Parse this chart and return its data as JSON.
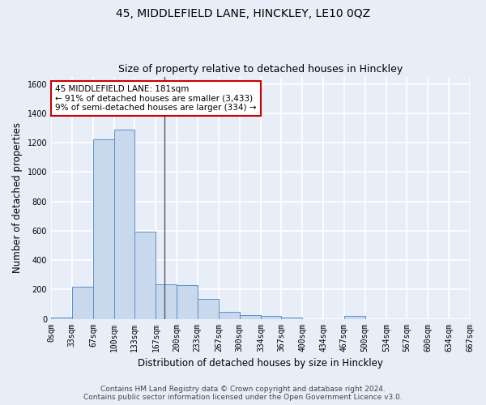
{
  "title": "45, MIDDLEFIELD LANE, HINCKLEY, LE10 0QZ",
  "subtitle": "Size of property relative to detached houses in Hinckley",
  "xlabel": "Distribution of detached houses by size in Hinckley",
  "ylabel": "Number of detached properties",
  "bar_edges": [
    0,
    33,
    67,
    100,
    133,
    167,
    200,
    233,
    267,
    300,
    334,
    367,
    400,
    434,
    467,
    500,
    534,
    567,
    600,
    634,
    667
  ],
  "bar_heights": [
    10,
    220,
    1220,
    1290,
    595,
    235,
    230,
    135,
    45,
    25,
    20,
    10,
    0,
    0,
    20,
    0,
    0,
    0,
    0,
    0
  ],
  "bar_color": "#c9d9ed",
  "bar_edge_color": "#5b8fc9",
  "property_size": 181,
  "property_label": "45 MIDDLEFIELD LANE: 181sqm",
  "annotation_line1": "← 91% of detached houses are smaller (3,433)",
  "annotation_line2": "9% of semi-detached houses are larger (334) →",
  "annotation_box_color": "white",
  "annotation_box_edge": "#cc0000",
  "vline_color": "#555555",
  "ylim": [
    0,
    1650
  ],
  "yticks": [
    0,
    200,
    400,
    600,
    800,
    1000,
    1200,
    1400,
    1600
  ],
  "bg_color": "#e8eef8",
  "grid_color": "white",
  "footer_line1": "Contains HM Land Registry data © Crown copyright and database right 2024.",
  "footer_line2": "Contains public sector information licensed under the Open Government Licence v3.0.",
  "title_fontsize": 10,
  "subtitle_fontsize": 9,
  "axis_label_fontsize": 8.5,
  "tick_fontsize": 7,
  "annotation_fontsize": 7.5,
  "footer_fontsize": 6.5
}
